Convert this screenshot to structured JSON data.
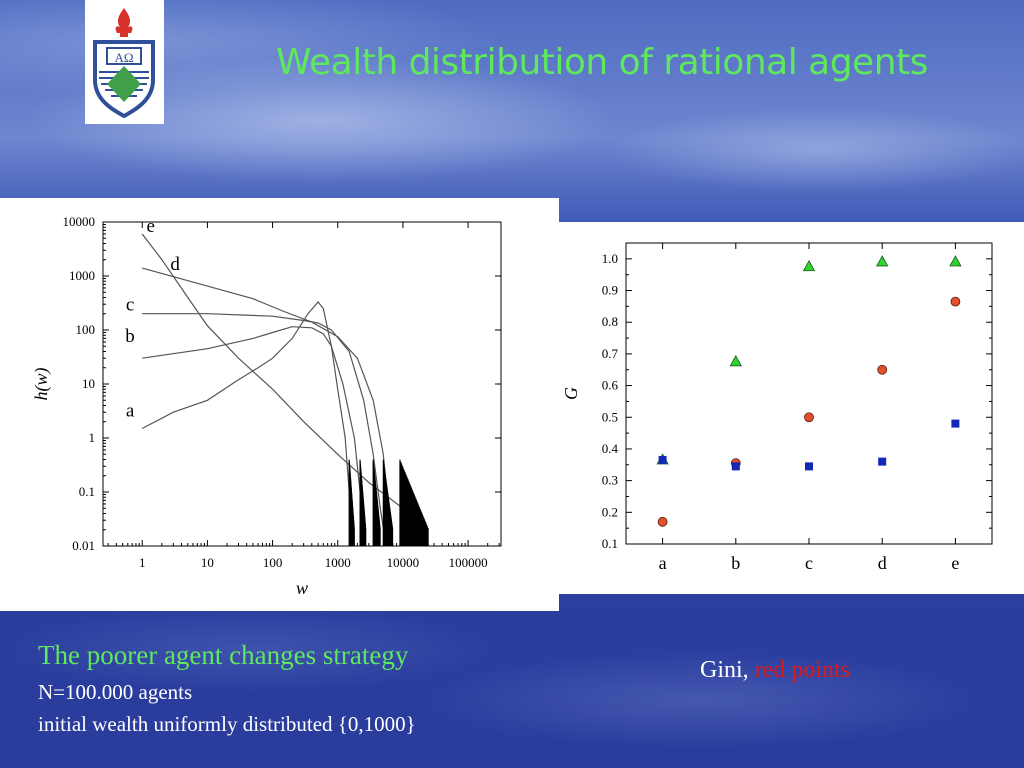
{
  "slide": {
    "title": "Wealth distribution of rational agents",
    "caption_heading": "The poorer agent changes strategy",
    "caption_line1": "N=100.000 agents",
    "caption_line2": "initial wealth uniformly distributed {0,1000}",
    "gini_label": "Gini, ",
    "gini_highlight": "red points"
  },
  "logo": {
    "letters": "ΑΩ",
    "colors": {
      "flame": "#d8302a",
      "shield_border": "#2f4f9a",
      "shield_fill": "#ffffff",
      "diamond": "#3f9f4a"
    }
  },
  "chart_data": [
    {
      "type": "line",
      "xlabel": "w",
      "ylabel": "h(w)",
      "x_scale": "log",
      "y_scale": "log",
      "xlim": [
        0.25,
        320000
      ],
      "ylim": [
        0.01,
        10000
      ],
      "x_ticks": [
        1,
        10,
        100,
        1000,
        10000,
        100000
      ],
      "x_tick_labels": [
        "1",
        "10",
        "100",
        "1000",
        "10000",
        "100000"
      ],
      "y_ticks": [
        0.01,
        0.1,
        1,
        10,
        100,
        1000,
        10000
      ],
      "y_tick_labels": [
        "0.01",
        "0.1",
        "1",
        "10",
        "100",
        "1000",
        "10000"
      ],
      "line_color": "#555555",
      "series": [
        {
          "name": "a",
          "points": [
            [
              1,
              1.5
            ],
            [
              3,
              3
            ],
            [
              10,
              5
            ],
            [
              30,
              12
            ],
            [
              60,
              20
            ],
            [
              100,
              30
            ],
            [
              200,
              70
            ],
            [
              350,
              200
            ],
            [
              500,
              330
            ],
            [
              600,
              250
            ],
            [
              800,
              50
            ],
            [
              1000,
              8
            ],
            [
              1300,
              1
            ],
            [
              1500,
              0.1
            ],
            [
              1700,
              0.01
            ]
          ]
        },
        {
          "name": "b",
          "points": [
            [
              1,
              30
            ],
            [
              10,
              45
            ],
            [
              50,
              70
            ],
            [
              100,
              90
            ],
            [
              200,
              115
            ],
            [
              400,
              110
            ],
            [
              600,
              85
            ],
            [
              800,
              50
            ],
            [
              1200,
              10
            ],
            [
              1800,
              1
            ],
            [
              2200,
              0.1
            ],
            [
              2500,
              0.01
            ]
          ]
        },
        {
          "name": "c",
          "points": [
            [
              1,
              200
            ],
            [
              10,
              200
            ],
            [
              100,
              180
            ],
            [
              300,
              150
            ],
            [
              500,
              135
            ],
            [
              800,
              100
            ],
            [
              1500,
              40
            ],
            [
              2500,
              5
            ],
            [
              3500,
              0.5
            ],
            [
              4500,
              0.05
            ],
            [
              5500,
              0.01
            ]
          ]
        },
        {
          "name": "d",
          "points": [
            [
              1,
              1400
            ],
            [
              10,
              650
            ],
            [
              50,
              380
            ],
            [
              150,
              220
            ],
            [
              400,
              140
            ],
            [
              1000,
              75
            ],
            [
              2000,
              30
            ],
            [
              3500,
              5
            ],
            [
              5000,
              0.5
            ],
            [
              6000,
              0.05
            ],
            [
              7000,
              0.01
            ]
          ]
        },
        {
          "name": "e",
          "points": [
            [
              1,
              6000
            ],
            [
              2,
              2000
            ],
            [
              5,
              400
            ],
            [
              10,
              120
            ],
            [
              30,
              30
            ],
            [
              100,
              8
            ],
            [
              300,
              2
            ],
            [
              1000,
              0.5
            ],
            [
              3000,
              0.15
            ],
            [
              10000,
              0.05
            ],
            [
              20000,
              0.02
            ],
            [
              25000,
              0.01
            ]
          ]
        }
      ],
      "series_labels": [
        "e",
        "d",
        "c",
        "b",
        "a"
      ]
    },
    {
      "type": "scatter",
      "ylabel": "G",
      "categories": [
        "a",
        "b",
        "c",
        "d",
        "e"
      ],
      "ylim": [
        0.1,
        1.05
      ],
      "y_ticks": [
        0.1,
        0.2,
        0.3,
        0.4,
        0.5,
        0.6,
        0.7,
        0.8,
        0.9,
        1.0
      ],
      "y_tick_labels": [
        "0.1",
        "0.2",
        "0.3",
        "0.4",
        "0.5",
        "0.6",
        "0.7",
        "0.8",
        "0.9",
        "1.0"
      ],
      "series": [
        {
          "marker": "triangle",
          "color": "#2fd42f",
          "values": [
            0.365,
            0.675,
            0.975,
            0.99,
            0.99
          ]
        },
        {
          "marker": "circle",
          "color": "#e0502a",
          "values": [
            0.17,
            0.355,
            0.5,
            0.65,
            0.865
          ]
        },
        {
          "marker": "square",
          "color": "#1428b8",
          "values": [
            0.365,
            0.345,
            0.345,
            0.36,
            0.48
          ]
        }
      ]
    }
  ]
}
